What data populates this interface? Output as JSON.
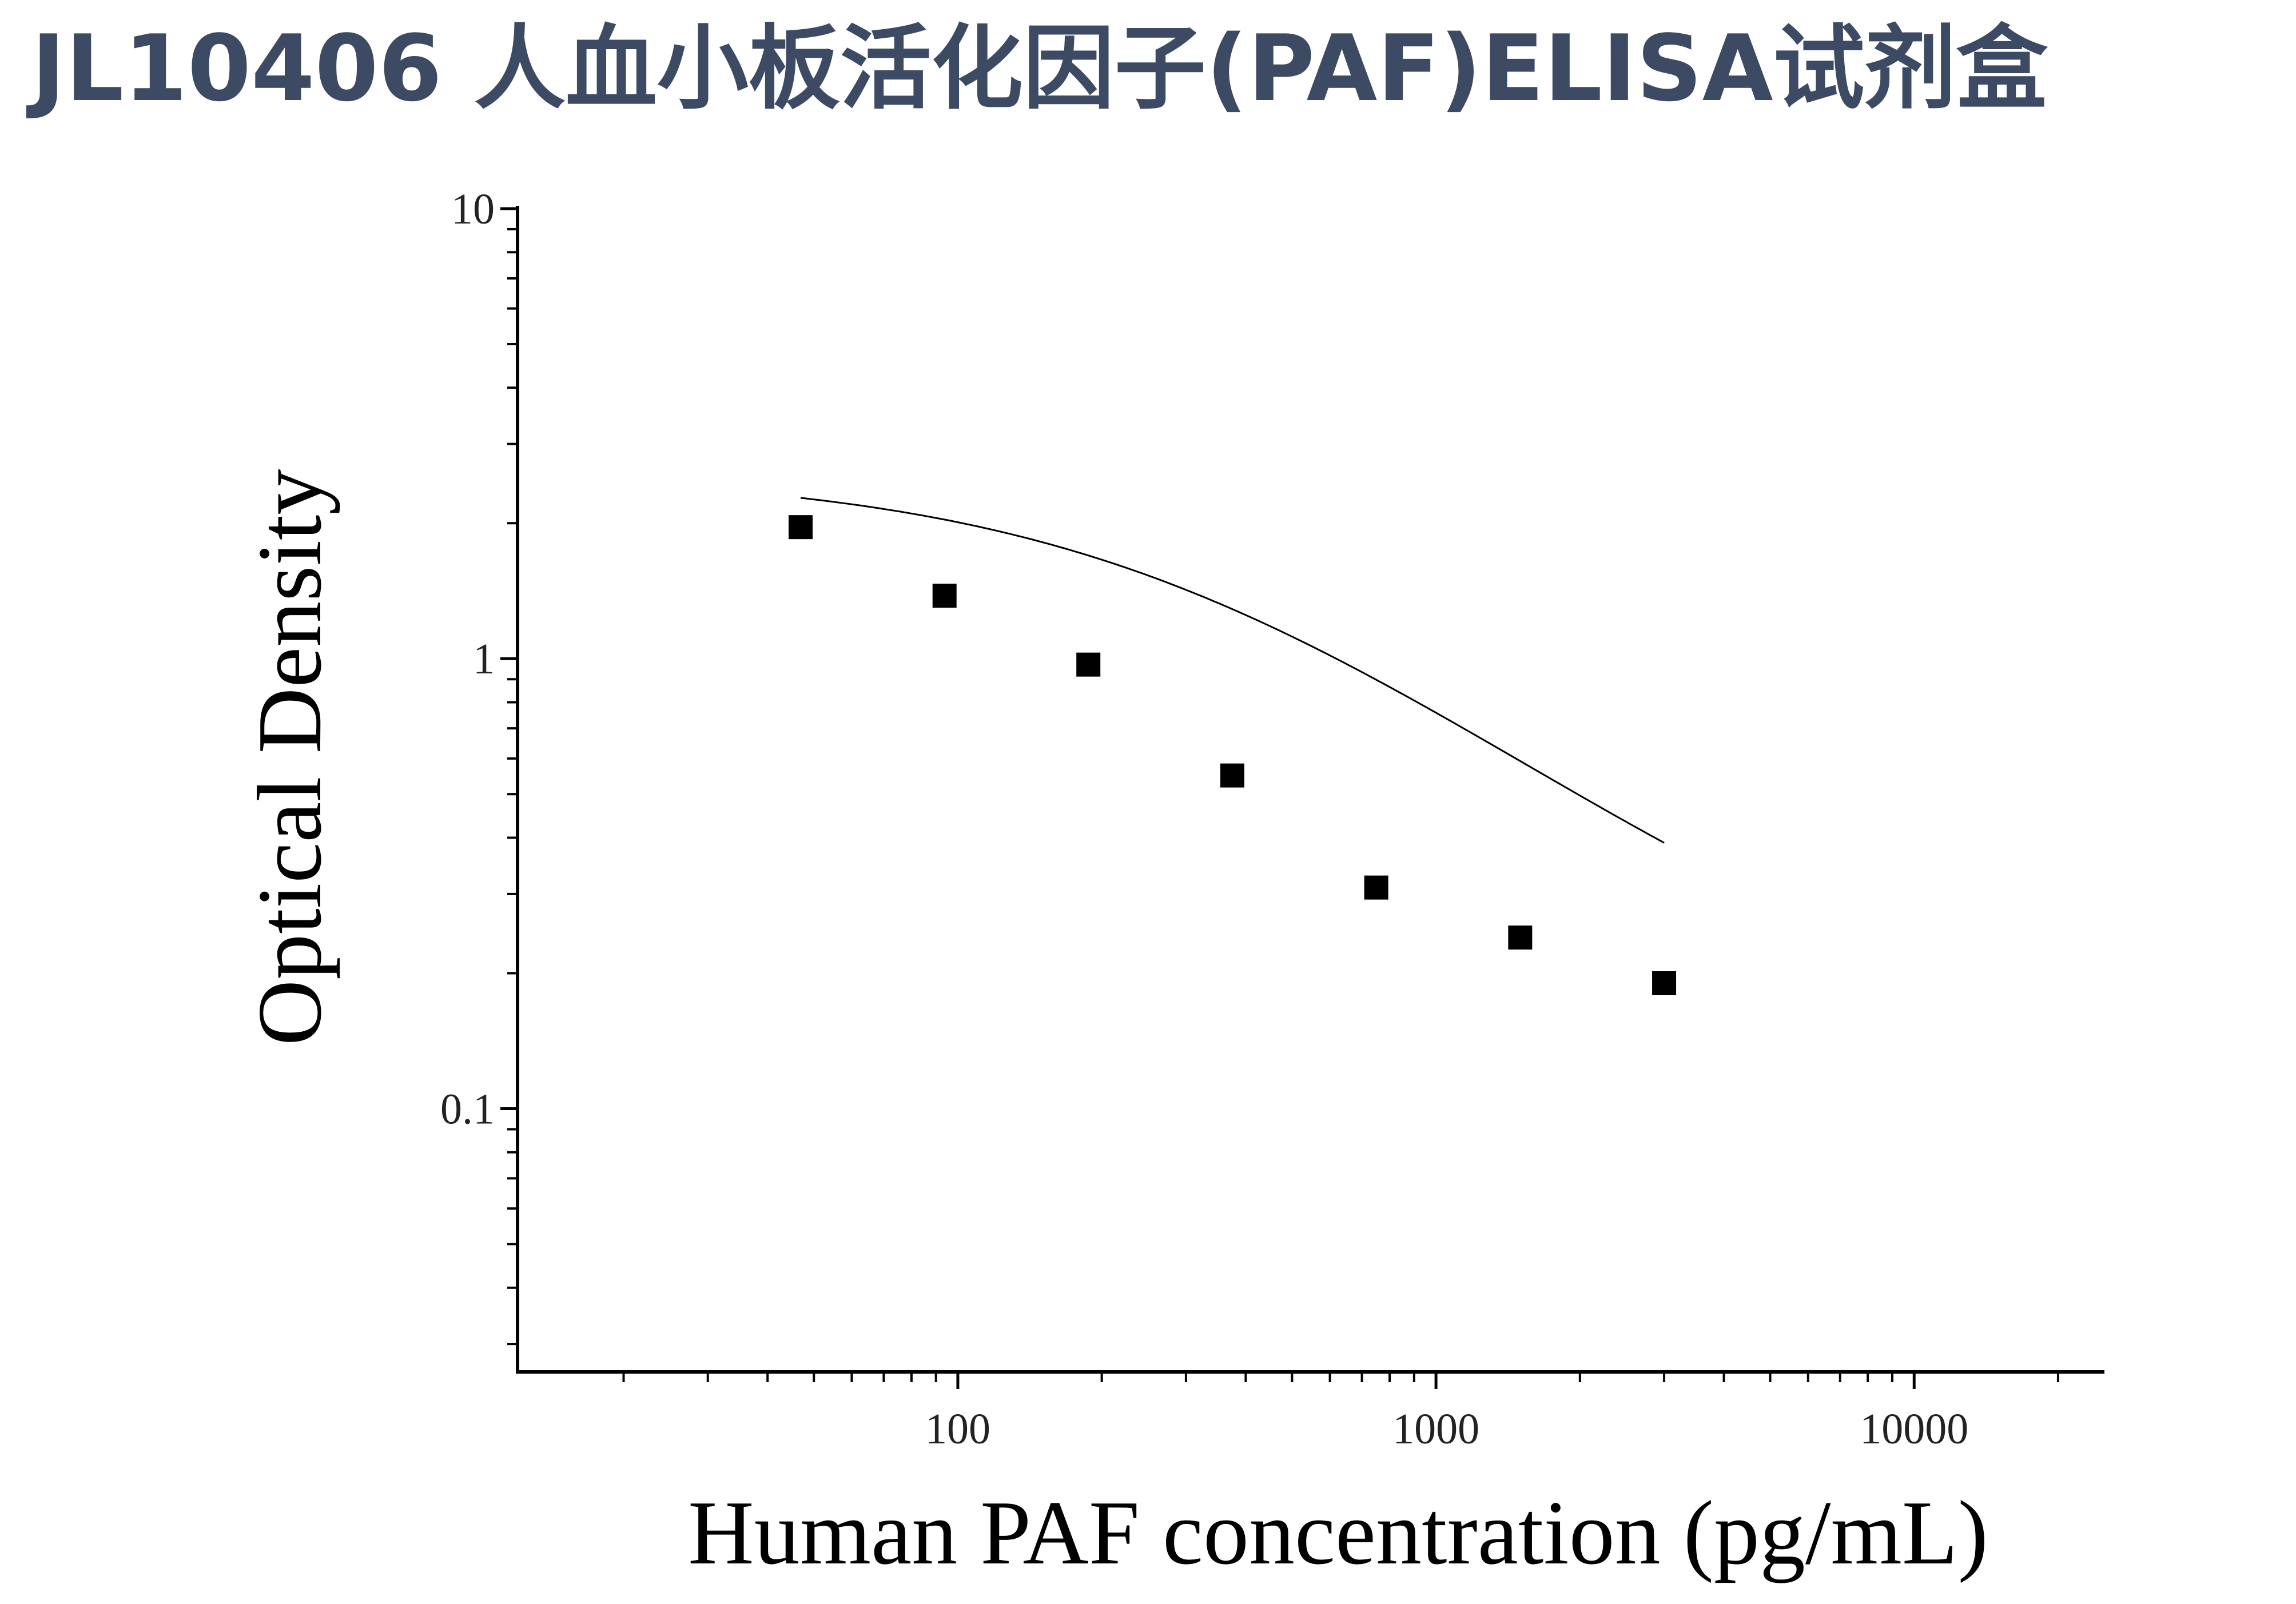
{
  "page": {
    "title": "JL10406 人血小板活化因子(PAF)ELISA试剂盒"
  },
  "chart_data": {
    "type": "scatter",
    "title": "",
    "xlabel": "Human PAF concentration (pg/mL)",
    "ylabel": "Optical Density",
    "xscale": "log",
    "yscale": "log",
    "xlim": [
      12,
      25000
    ],
    "ylim": [
      0.026,
      10
    ],
    "x_ticks": [
      100,
      1000,
      10000
    ],
    "x_tick_labels": [
      "100",
      "1000",
      "10000"
    ],
    "y_ticks": [
      0.1,
      1,
      10
    ],
    "y_tick_labels": [
      "0.1",
      "1",
      "10"
    ],
    "grid": false,
    "legend": "none",
    "marker_color": "#000000",
    "curve_color": "#000000",
    "series": [
      {
        "x": [
          46.9,
          93.8,
          187.5,
          375,
          750,
          1500,
          3000
        ],
        "y": [
          1.96,
          1.38,
          0.97,
          0.55,
          0.31,
          0.24,
          0.19
        ]
      }
    ],
    "fit_curve": {
      "type": "4PL",
      "top": 2.6,
      "bottom": 0.13,
      "ec50": 330,
      "hill": 0.97
    }
  }
}
